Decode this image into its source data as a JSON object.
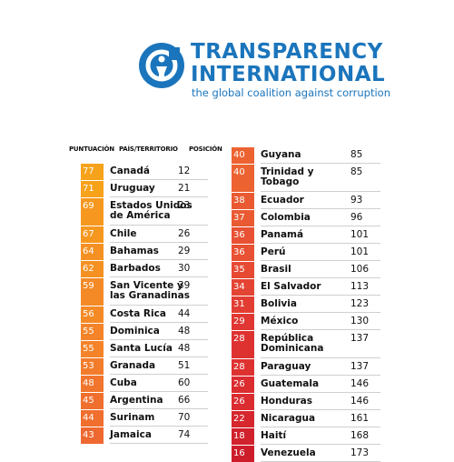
{
  "header": {
    "brand_line1": "TRANSPARENCY",
    "brand_line2": "INTERNATIONAL",
    "tagline": "the global coalition against corruption",
    "brand_color": "#1b75bc"
  },
  "columns": {
    "score": "PUNTUACIÓN",
    "country": "PAÍS/TERRITORIO",
    "rank": "POSICIÓN"
  },
  "table_left": [
    {
      "score": "77",
      "country": "Canadá",
      "rank": "12",
      "color": "#f7a21b"
    },
    {
      "score": "71",
      "country": "Uruguay",
      "rank": "21",
      "color": "#f7a21b"
    },
    {
      "score": "69",
      "country": "Estados Unidos de América",
      "rank": "23",
      "color": "#f6981f"
    },
    {
      "score": "67",
      "country": "Chile",
      "rank": "26",
      "color": "#f6981f"
    },
    {
      "score": "64",
      "country": "Bahamas",
      "rank": "29",
      "color": "#f59123"
    },
    {
      "score": "62",
      "country": "Barbados",
      "rank": "30",
      "color": "#f59123"
    },
    {
      "score": "59",
      "country": "San Vicente y las Granadinas",
      "rank": "39",
      "color": "#f48a26"
    },
    {
      "score": "56",
      "country": "Costa Rica",
      "rank": "44",
      "color": "#f48a26"
    },
    {
      "score": "55",
      "country": "Dominica",
      "rank": "48",
      "color": "#f48329"
    },
    {
      "score": "55",
      "country": "Santa Lucía",
      "rank": "48",
      "color": "#f48329"
    },
    {
      "score": "53",
      "country": "Granada",
      "rank": "51",
      "color": "#f27c2b"
    },
    {
      "score": "48",
      "country": "Cuba",
      "rank": "60",
      "color": "#f1752d"
    },
    {
      "score": "45",
      "country": "Argentina",
      "rank": "66",
      "color": "#f06e2e"
    },
    {
      "score": "44",
      "country": "Surinam",
      "rank": "70",
      "color": "#f06e2e"
    },
    {
      "score": "43",
      "country": "Jamaica",
      "rank": "74",
      "color": "#ef6830"
    }
  ],
  "table_right": [
    {
      "score": "40",
      "country": "Guyana",
      "rank": "85",
      "color": "#ec6331"
    },
    {
      "score": "40",
      "country": "Trinidad y Tobago",
      "rank": "85",
      "color": "#ec6331"
    },
    {
      "score": "38",
      "country": "Ecuador",
      "rank": "93",
      "color": "#ea5a32"
    },
    {
      "score": "37",
      "country": "Colombia",
      "rank": "96",
      "color": "#ea5a32"
    },
    {
      "score": "36",
      "country": "Panamá",
      "rank": "101",
      "color": "#e85133"
    },
    {
      "score": "36",
      "country": "Perú",
      "rank": "101",
      "color": "#e85133"
    },
    {
      "score": "35",
      "country": "Brasil",
      "rank": "106",
      "color": "#e64a33"
    },
    {
      "score": "34",
      "country": "El Salvador",
      "rank": "113",
      "color": "#e44433"
    },
    {
      "score": "31",
      "country": "Bolivia",
      "rank": "123",
      "color": "#e23d32"
    },
    {
      "score": "29",
      "country": "México",
      "rank": "130",
      "color": "#e03732"
    },
    {
      "score": "28",
      "country": "República Dominicana",
      "rank": "137",
      "color": "#de3231"
    },
    {
      "score": "28",
      "country": "Paraguay",
      "rank": "137",
      "color": "#de3231"
    },
    {
      "score": "26",
      "country": "Guatemala",
      "rank": "146",
      "color": "#db2c30"
    },
    {
      "score": "26",
      "country": "Honduras",
      "rank": "146",
      "color": "#db2c30"
    },
    {
      "score": "22",
      "country": "Nicaragua",
      "rank": "161",
      "color": "#d6262e"
    },
    {
      "score": "18",
      "country": "Haití",
      "rank": "168",
      "color": "#d1212c"
    },
    {
      "score": "16",
      "country": "Venezuela",
      "rank": "173",
      "color": "#cd1d2a"
    }
  ]
}
